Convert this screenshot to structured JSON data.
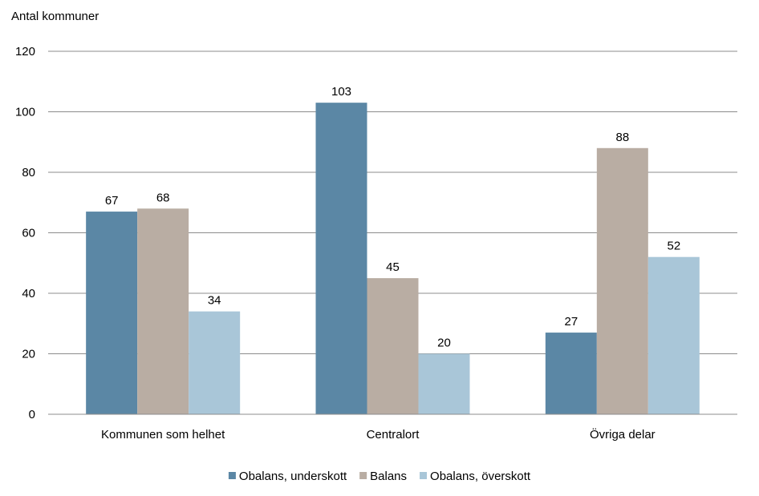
{
  "chart_data": {
    "type": "bar",
    "ylabel": "Antal kommuner",
    "xlabel": "",
    "title": "",
    "ylim": [
      0,
      120
    ],
    "yticks": [
      0,
      20,
      40,
      60,
      80,
      100,
      120
    ],
    "grid": true,
    "legend_position": "bottom",
    "categories": [
      "Kommunen som helhet",
      "Centralort",
      "Övriga delar"
    ],
    "series": [
      {
        "name": "Obalans, underskott",
        "color": "#5b87a5",
        "values": [
          67,
          103,
          27
        ]
      },
      {
        "name": "Balans",
        "color": "#b9ada3",
        "values": [
          68,
          45,
          88
        ]
      },
      {
        "name": "Obalans, överskott",
        "color": "#a9c6d8",
        "values": [
          34,
          20,
          52
        ]
      }
    ],
    "data_labels": true
  }
}
